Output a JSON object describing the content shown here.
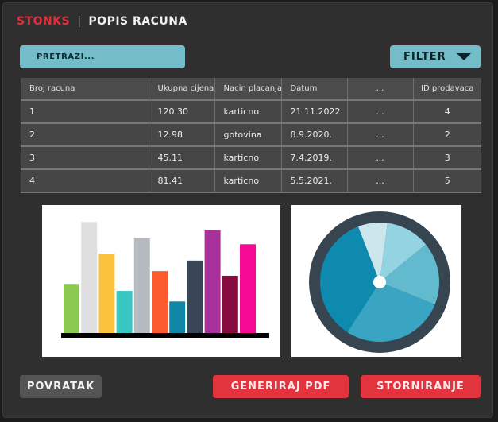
{
  "header": {
    "brand": "STONKS",
    "separator": "|",
    "page_title": "POPIS RACUNA"
  },
  "search": {
    "label": "PRETRAZI..."
  },
  "filter": {
    "label": "FILTER",
    "icon": "caret-down-icon"
  },
  "table": {
    "columns": [
      "Broj racuna",
      "Ukupna cijena",
      "Nacin placanja",
      "Datum",
      "...",
      "ID prodavaca"
    ],
    "rows": [
      [
        "1",
        "120.30",
        "karticno",
        "21.11.2022.",
        "...",
        "4"
      ],
      [
        "2",
        "12.98",
        "gotovina",
        "8.9.2020.",
        "...",
        "2"
      ],
      [
        "3",
        "45.11",
        "karticno",
        "7.4.2019.",
        "...",
        "3"
      ],
      [
        "4",
        "81.41",
        "karticno",
        "5.5.2021.",
        "...",
        "5"
      ]
    ]
  },
  "bar_chart": {
    "bars": [
      {
        "value": 4.2,
        "color": "#8ac850"
      },
      {
        "value": 9.5,
        "color": "#dedede"
      },
      {
        "value": 6.8,
        "color": "#fbc23e"
      },
      {
        "value": 3.6,
        "color": "#37c6c2"
      },
      {
        "value": 8.1,
        "color": "#b5bac0"
      },
      {
        "value": 5.3,
        "color": "#fb5b2f"
      },
      {
        "value": 2.7,
        "color": "#0f86a6"
      },
      {
        "value": 6.2,
        "color": "#394656"
      },
      {
        "value": 8.8,
        "color": "#a8309a"
      },
      {
        "value": 4.9,
        "color": "#860b3f"
      },
      {
        "value": 7.6,
        "color": "#f70a96"
      }
    ],
    "max": 10,
    "baseline_color": "#000000"
  },
  "pie_chart": {
    "ring_color": "#364550",
    "center_color": "#ffffff",
    "slices": [
      {
        "value": 8,
        "color": "#cbe6ed"
      },
      {
        "value": 12,
        "color": "#94d3e1"
      },
      {
        "value": 17,
        "color": "#62bacf"
      },
      {
        "value": 28,
        "color": "#3aa4c3"
      },
      {
        "value": 35,
        "color": "#0e8aae"
      }
    ]
  },
  "buttons": {
    "back": "POVRATAK",
    "pdf": "GENERIRAJ PDF",
    "storno": "STORNIRANJE"
  }
}
